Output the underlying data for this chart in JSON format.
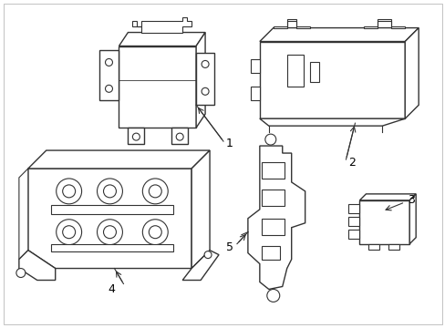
{
  "background_color": "#ffffff",
  "line_color": "#333333",
  "line_width": 0.8,
  "fig_width": 4.89,
  "fig_height": 3.6,
  "dpi": 100
}
